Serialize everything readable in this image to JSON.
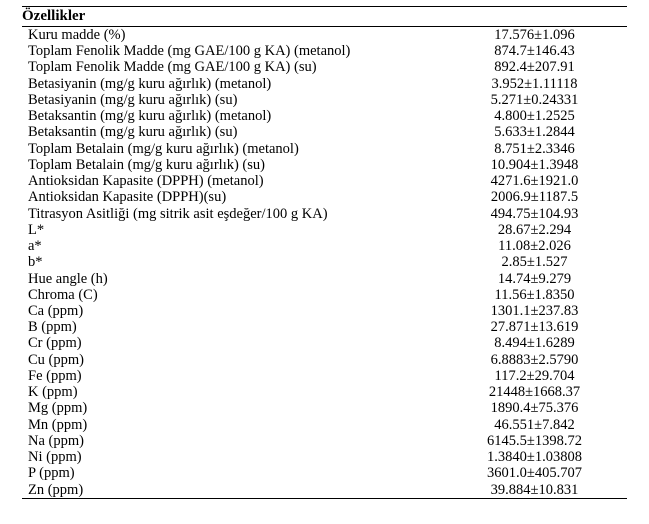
{
  "table": {
    "header": "Özellikler",
    "rows": [
      {
        "label": "Kuru madde (%)",
        "value": "17.576±1.096"
      },
      {
        "label": "Toplam Fenolik Madde (mg GAE/100 g KA) (metanol)",
        "value": "874.7±146.43"
      },
      {
        "label": "Toplam Fenolik Madde (mg GAE/100 g KA) (su)",
        "value": "892.4±207.91"
      },
      {
        "label": "Betasiyanin (mg/g kuru ağırlık) (metanol)",
        "value": "3.952±1.11118"
      },
      {
        "label": "Betasiyanin (mg/g kuru ağırlık) (su)",
        "value": "5.271±0.24331"
      },
      {
        "label": "Betaksantin (mg/g kuru ağırlık) (metanol)",
        "value": "4.800±1.2525"
      },
      {
        "label": "Betaksantin (mg/g kuru ağırlık) (su)",
        "value": "5.633±1.2844"
      },
      {
        "label": "Toplam Betalain (mg/g kuru ağırlık) (metanol)",
        "value": "8.751±2.3346"
      },
      {
        "label": "Toplam Betalain (mg/g kuru ağırlık) (su)",
        "value": "10.904±1.3948"
      },
      {
        "label": "Antioksidan Kapasite (DPPH) (metanol)",
        "value": "4271.6±1921.0"
      },
      {
        "label": "Antioksidan Kapasite (DPPH)(su)",
        "value": "2006.9±1187.5"
      },
      {
        "label": "Titrasyon Asitliği (mg sitrik asit eşdeğer/100 g KA)",
        "value": "494.75±104.93"
      },
      {
        "label": "L*",
        "value": "28.67±2.294"
      },
      {
        "label": "a*",
        "value": "11.08±2.026"
      },
      {
        "label": "b*",
        "value": "2.85±1.527"
      },
      {
        "label": "Hue angle (h)",
        "value": "14.74±9.279"
      },
      {
        "label": "Chroma (C)",
        "value": "11.56±1.8350"
      },
      {
        "label": "Ca (ppm)",
        "value": "1301.1±237.83"
      },
      {
        "label": "B (ppm)",
        "value": "27.871±13.619"
      },
      {
        "label": "Cr (ppm)",
        "value": "8.494±1.6289"
      },
      {
        "label": "Cu (ppm)",
        "value": "6.8883±2.5790"
      },
      {
        "label": "Fe (ppm)",
        "value": "117.2±29.704"
      },
      {
        "label": "K (ppm)",
        "value": "21448±1668.37"
      },
      {
        "label": "Mg (ppm)",
        "value": "1890.4±75.376"
      },
      {
        "label": "Mn (ppm)",
        "value": "46.551±7.842"
      },
      {
        "label": "Na (ppm)",
        "value": "6145.5±1398.72"
      },
      {
        "label": "Ni (ppm)",
        "value": "1.3840±1.03808"
      },
      {
        "label": "P (ppm)",
        "value": "3601.0±405.707"
      },
      {
        "label": "Zn (ppm)",
        "value": "39.884±10.831"
      }
    ]
  }
}
